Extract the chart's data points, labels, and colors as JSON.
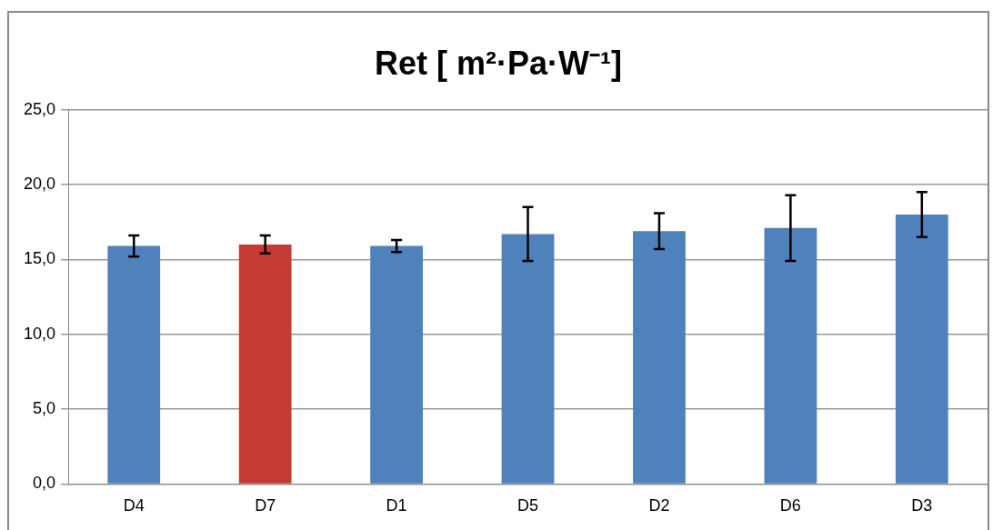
{
  "chart_data": {
    "type": "bar",
    "title": "Ret [ m²·Pa·W⁻¹]",
    "categories": [
      "D4",
      "D7",
      "D1",
      "D5",
      "D2",
      "D6",
      "D3"
    ],
    "values": [
      15.9,
      16.0,
      15.9,
      16.7,
      16.9,
      17.1,
      18.0
    ],
    "colors": [
      "#4f81bd",
      "#c43c35",
      "#4f81bd",
      "#4f81bd",
      "#4f81bd",
      "#4f81bd",
      "#4f81bd"
    ],
    "errors": [
      0.7,
      0.6,
      0.4,
      1.8,
      1.2,
      2.2,
      1.5
    ],
    "ylim": [
      0,
      25
    ],
    "yticks": [
      {
        "value": 0,
        "label": "0,0"
      },
      {
        "value": 5,
        "label": "5,0"
      },
      {
        "value": 10,
        "label": "10,0"
      },
      {
        "value": 15,
        "label": "15,0"
      },
      {
        "value": 20,
        "label": "20,0"
      },
      {
        "value": 25,
        "label": "25,0"
      }
    ],
    "grid": "y",
    "legend": false
  }
}
